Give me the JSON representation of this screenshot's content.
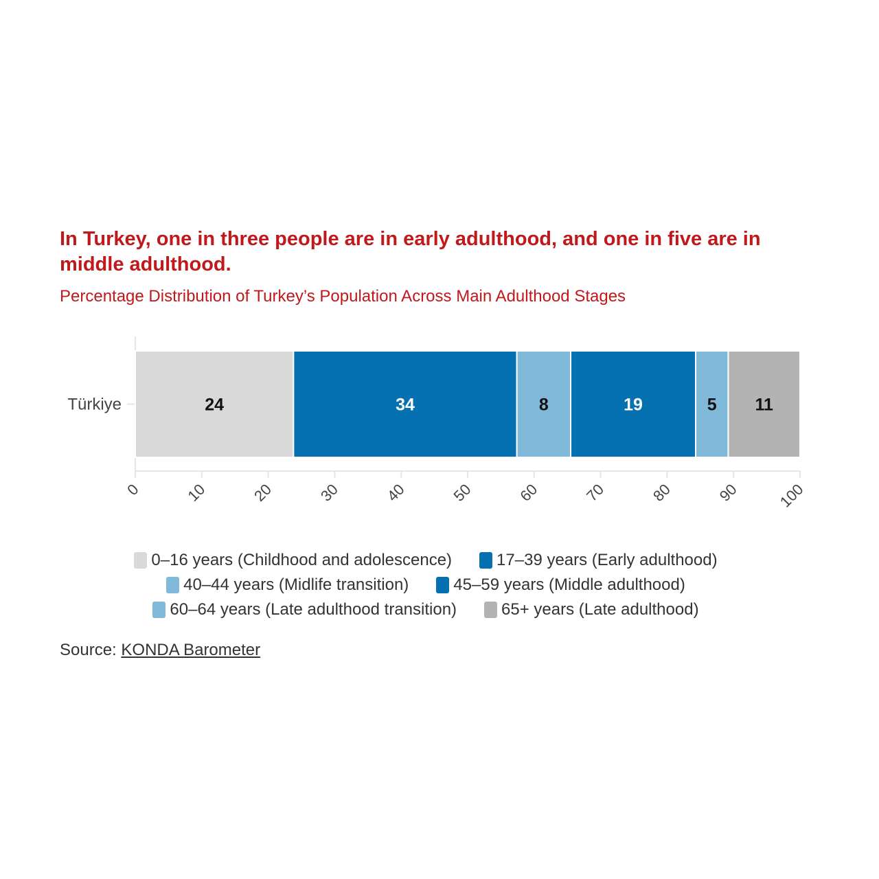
{
  "chart_data": {
    "type": "bar",
    "orientation": "horizontal-stacked",
    "title": "In Turkey, one in three people are in early adulthood, and one in five are in middle adulthood.",
    "subtitle": "Percentage Distribution of Turkey’s Population Across Main Adulthood Stages",
    "categories": [
      "Türkiye"
    ],
    "series": [
      {
        "name": "0–16 years (Childhood and adolescence)",
        "values": [
          23.8
        ],
        "label": "24",
        "color": "#d9d9d9",
        "label_color": "#111111"
      },
      {
        "name": "17–39 years (Early adulthood)",
        "values": [
          33.6
        ],
        "label": "34",
        "color": "#0571b0",
        "label_color": "#ffffff"
      },
      {
        "name": "40–44 years (Midlife transition)",
        "values": [
          8.1
        ],
        "label": "8",
        "color": "#80b9d9",
        "label_color": "#111111"
      },
      {
        "name": "45–59 years (Middle adulthood)",
        "values": [
          18.8
        ],
        "label": "19",
        "color": "#0571b0",
        "label_color": "#ffffff"
      },
      {
        "name": "60–64 years (Late adulthood transition)",
        "values": [
          4.9
        ],
        "label": "5",
        "color": "#80b9d9",
        "label_color": "#111111"
      },
      {
        "name": "65+ years (Late adulthood)",
        "values": [
          10.8
        ],
        "label": "11",
        "color": "#b3b3b3",
        "label_color": "#111111"
      }
    ],
    "xlim": [
      0,
      100
    ],
    "xticks": [
      "0",
      "10",
      "20",
      "30",
      "40",
      "50",
      "60",
      "70",
      "80",
      "90",
      "100"
    ],
    "xlabel": "",
    "ylabel": "",
    "legend_placement": "bottom"
  },
  "source": {
    "prefix": "Source:",
    "link": "KONDA Barometer"
  }
}
